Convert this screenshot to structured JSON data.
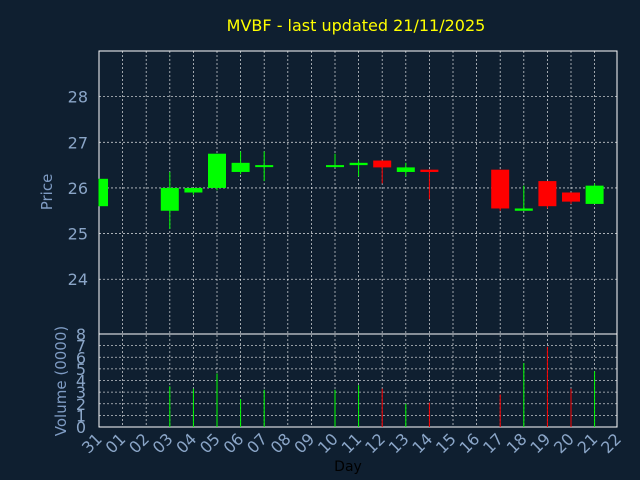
{
  "chart_data": {
    "type": "candlestick",
    "title": "MVBF - last updated 21/11/2025",
    "xlabel": "Day",
    "price_panel": {
      "ylabel": "Price",
      "ylim": [
        22.8,
        29
      ],
      "yticks": [
        24,
        25,
        26,
        27,
        28
      ]
    },
    "volume_panel": {
      "ylabel": "Volume (0000)",
      "ylim": [
        0,
        8
      ],
      "yticks": [
        0,
        1,
        2,
        3,
        4,
        5,
        6,
        7,
        8
      ]
    },
    "categories": [
      "31",
      "01",
      "02",
      "03",
      "04",
      "05",
      "06",
      "07",
      "08",
      "09",
      "10",
      "11",
      "12",
      "13",
      "14",
      "15",
      "16",
      "17",
      "18",
      "19",
      "20",
      "21",
      "22"
    ],
    "candles": [
      {
        "day": "31",
        "open": 25.6,
        "high": 26.2,
        "low": 25.6,
        "close": 26.2,
        "volume": 0
      },
      {
        "day": "03",
        "open": 25.5,
        "high": 26.35,
        "low": 25.1,
        "close": 26.0,
        "volume": 3.5
      },
      {
        "day": "04",
        "open": 25.9,
        "high": 26.0,
        "low": 25.85,
        "close": 26.0,
        "volume": 3.3
      },
      {
        "day": "05",
        "open": 26.0,
        "high": 26.75,
        "low": 25.95,
        "close": 26.75,
        "volume": 4.6
      },
      {
        "day": "06",
        "open": 26.35,
        "high": 26.8,
        "low": 26.3,
        "close": 26.55,
        "volume": 2.4
      },
      {
        "day": "07",
        "open": 26.5,
        "high": 26.8,
        "low": 26.15,
        "close": 26.5,
        "volume": 3.2
      },
      {
        "day": "10",
        "open": 26.5,
        "high": 26.75,
        "low": 26.45,
        "close": 26.5,
        "volume": 3.2
      },
      {
        "day": "11",
        "open": 26.5,
        "high": 26.6,
        "low": 26.25,
        "close": 26.55,
        "volume": 3.6
      },
      {
        "day": "12",
        "open": 26.6,
        "high": 26.6,
        "low": 26.1,
        "close": 26.45,
        "volume": 3.3
      },
      {
        "day": "13",
        "open": 26.35,
        "high": 26.55,
        "low": 26.25,
        "close": 26.45,
        "volume": 2.0
      },
      {
        "day": "14",
        "open": 26.4,
        "high": 26.4,
        "low": 25.75,
        "close": 26.35,
        "volume": 2.1
      },
      {
        "day": "17",
        "open": 26.4,
        "high": 26.4,
        "low": 25.5,
        "close": 25.55,
        "volume": 2.8
      },
      {
        "day": "18",
        "open": 25.5,
        "high": 26.05,
        "low": 25.5,
        "close": 25.55,
        "volume": 5.5
      },
      {
        "day": "19",
        "open": 26.15,
        "high": 26.15,
        "low": 25.55,
        "close": 25.6,
        "volume": 6.9
      },
      {
        "day": "20",
        "open": 25.9,
        "high": 25.9,
        "low": 25.65,
        "close": 25.7,
        "volume": 3.3
      },
      {
        "day": "21",
        "open": 25.65,
        "high": 26.1,
        "low": 25.65,
        "close": 26.05,
        "volume": 4.8
      }
    ],
    "colors": {
      "background": "#0f1f30",
      "up": "#00ff00",
      "down": "#ff0000",
      "grid": "#ffffff",
      "axis_text": "#8aa5c7",
      "title": "#ffff00",
      "axis_title": "#7f9cc4",
      "xlabel": "#000000"
    },
    "grid": true
  }
}
